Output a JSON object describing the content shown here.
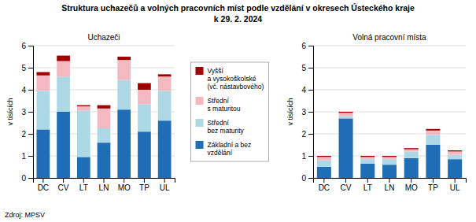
{
  "title": "Struktura uchazečů a volných pracovních míst podle vzdělání v okresech Ústeckého kraje",
  "subtitle": "k 29. 2. 2024",
  "annotations": [
    "Zdroj: MPSV"
  ],
  "chart_data": [
    {
      "type": "bar",
      "stacked": true,
      "grid": true,
      "title": "Uchazeči",
      "y_label": "v tisících",
      "categories": [
        "DC",
        "CV",
        "LT",
        "LN",
        "MO",
        "TP",
        "UL"
      ],
      "series": [
        {
          "name": "Základní a bez\nvzdělání",
          "color": "#1f6db5",
          "values": [
            2.2,
            3.0,
            0.95,
            1.6,
            3.1,
            2.1,
            2.6
          ]
        },
        {
          "name": "Střední\nbez maturity",
          "color": "#add8e6",
          "values": [
            1.75,
            1.6,
            2.1,
            0.65,
            1.35,
            1.25,
            1.35
          ]
        },
        {
          "name": "Střední\ns maturitou",
          "color": "#f4b8c1",
          "values": [
            0.7,
            0.7,
            0.2,
            0.9,
            0.9,
            0.65,
            0.65
          ]
        },
        {
          "name": "Vyšší\na vysokoškolské\n(vč. nástavbového)",
          "color": "#a00000",
          "values": [
            0.15,
            0.25,
            0.05,
            0.15,
            0.15,
            0.3,
            0.1
          ]
        }
      ],
      "ylim": [
        0,
        6
      ],
      "yticks": [
        0,
        1,
        2,
        3,
        4,
        5,
        6
      ]
    },
    {
      "type": "bar",
      "stacked": true,
      "grid": true,
      "title": "Volná pracovní místa",
      "y_label": "v tisících",
      "categories": [
        "DC",
        "CV",
        "LT",
        "LN",
        "MO",
        "TP",
        "UL"
      ],
      "series": [
        {
          "color": "#1f6db5",
          "values": [
            0.5,
            2.7,
            0.65,
            0.6,
            0.9,
            1.5,
            0.85
          ]
        },
        {
          "color": "#add8e6",
          "values": [
            0.3,
            0.1,
            0.2,
            0.25,
            0.3,
            0.45,
            0.2
          ]
        },
        {
          "color": "#f4b8c1",
          "values": [
            0.15,
            0.15,
            0.1,
            0.1,
            0.1,
            0.2,
            0.15
          ]
        },
        {
          "color": "#a00000",
          "values": [
            0.05,
            0.05,
            0.05,
            0.05,
            0.05,
            0.07,
            0.05
          ]
        }
      ],
      "ylim": [
        0,
        6
      ],
      "yticks": [
        0,
        1,
        2,
        3,
        4,
        5,
        6
      ]
    }
  ]
}
